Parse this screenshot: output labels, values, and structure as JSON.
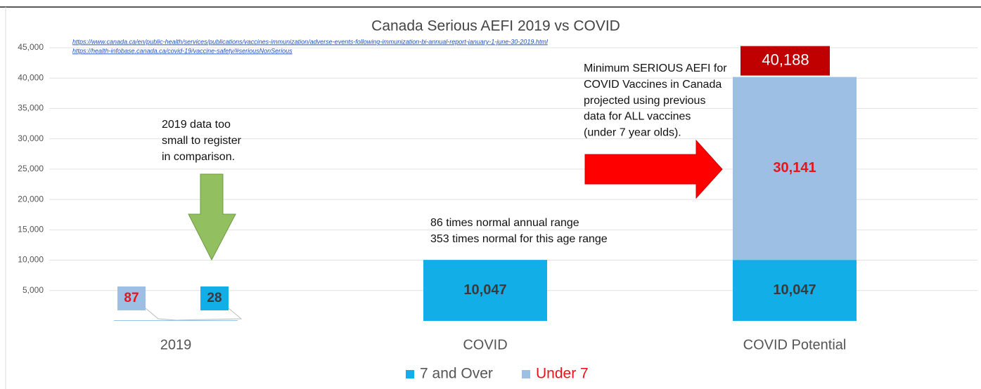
{
  "chart_data": {
    "type": "bar",
    "stacked": true,
    "title": "Canada Serious AEFI  2019 vs COVID",
    "links": [
      "https://www.canada.ca/en/public-health/services/publications/vaccines-immunization/adverse-events-following-immunization-bi-annual-report-january-1-june-30-2019.html",
      "https://health-infobase.canada.ca/covid-19/vaccine-safety/#seriousNonSerious"
    ],
    "categories": [
      "2019",
      "COVID",
      "COVID Potential"
    ],
    "series": [
      {
        "name": "7 and Over",
        "color": "#12aee8",
        "label_color": "#3a3a3a",
        "values": [
          28,
          10047,
          10047
        ],
        "value_labels": [
          "28",
          "10,047",
          "10,047"
        ]
      },
      {
        "name": "Under 7",
        "color": "#9dbfe3",
        "label_color": "#e8141c",
        "values": [
          87,
          null,
          30141
        ],
        "value_labels": [
          "87",
          null,
          "30,141"
        ]
      }
    ],
    "totals": [
      null,
      null,
      40188
    ],
    "total_labels": [
      null,
      null,
      "40,188"
    ],
    "total_color": "#c00000",
    "ylim": [
      0,
      45000
    ],
    "yticks": [
      {
        "value": 5000,
        "label": "5,000"
      },
      {
        "value": 10000,
        "label": "10,000"
      },
      {
        "value": 15000,
        "label": "15,000"
      },
      {
        "value": 20000,
        "label": "20,000"
      },
      {
        "value": 25000,
        "label": "25,000"
      },
      {
        "value": 30000,
        "label": "30,000"
      },
      {
        "value": 35000,
        "label": "35,000"
      },
      {
        "value": 40000,
        "label": "40,000"
      },
      {
        "value": 45000,
        "label": "45,000"
      }
    ],
    "grid": true,
    "legend": "bottom",
    "annotations": [
      {
        "lines": [
          "2019 data too",
          "small to register",
          "in comparison."
        ]
      },
      {
        "lines": [
          "86 times normal  annual range",
          "353 times normal for this age range"
        ]
      },
      {
        "lines": [
          "Minimum SERIOUS AEFI for",
          "COVID Vaccines in Canada",
          "projected using previous",
          "data for ALL vaccines",
          "(under 7 year olds)."
        ]
      }
    ]
  }
}
